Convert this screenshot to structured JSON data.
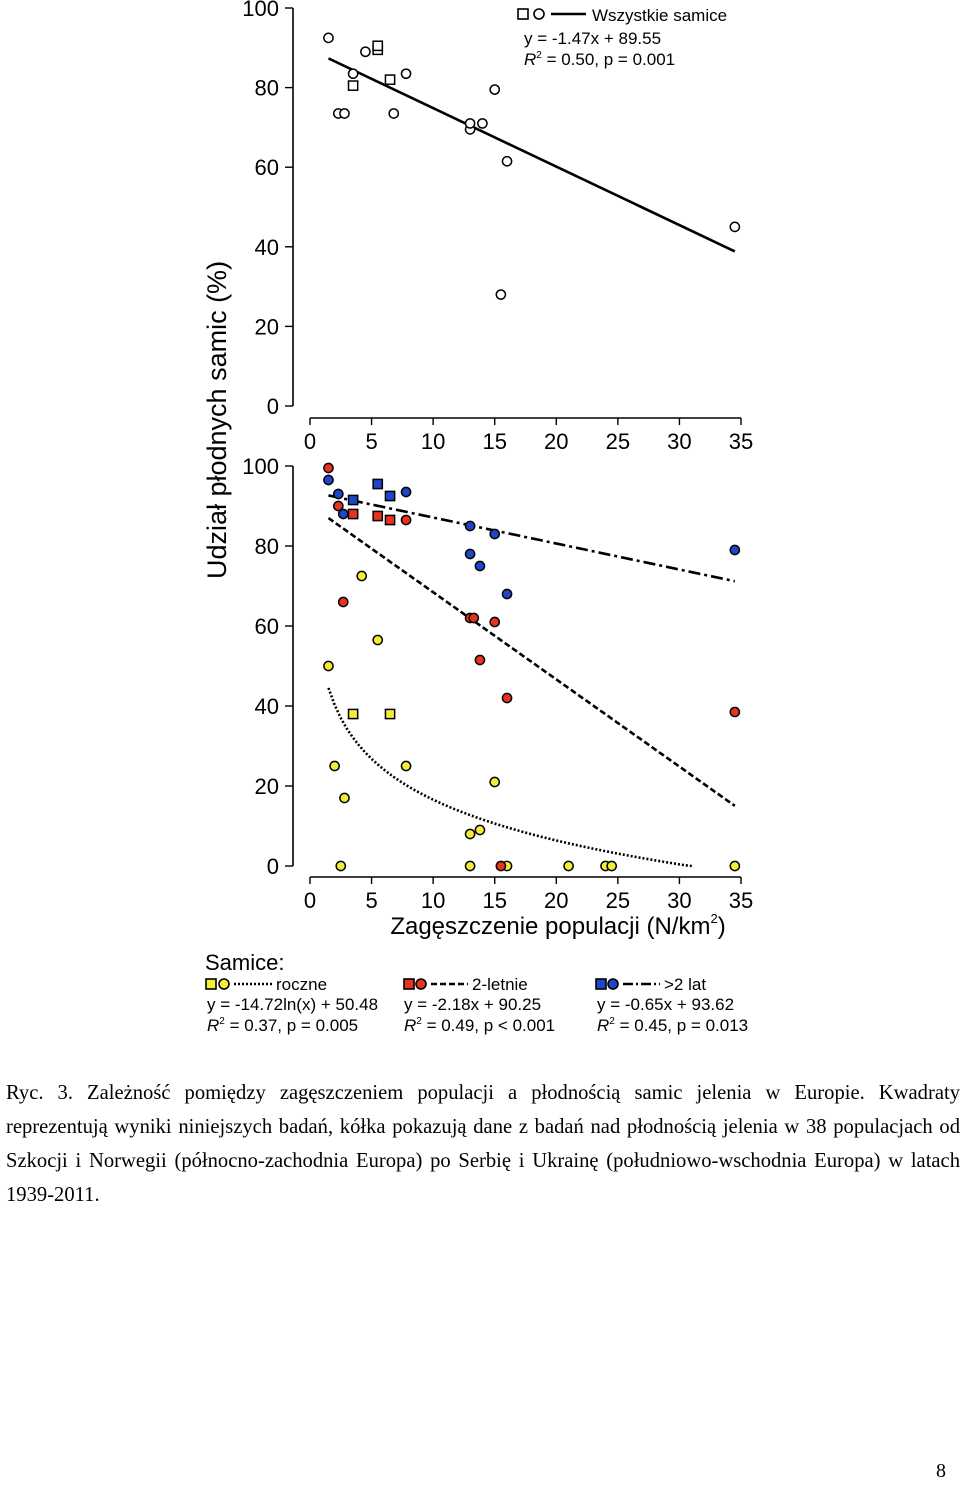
{
  "chart_data": [
    {
      "type": "scatter",
      "panel": "top",
      "xlim": [
        0,
        35
      ],
      "ylim": [
        0,
        100
      ],
      "xticks": [
        0,
        5,
        10,
        15,
        20,
        25,
        30,
        35
      ],
      "yticks": [
        0,
        20,
        40,
        60,
        80,
        100
      ],
      "legend": {
        "placement": "top-right",
        "label": "Wszystkie samice",
        "equation": "y = -1.47x + 89.55",
        "r2_symbol": "R",
        "r2_sup": "2",
        "r2_text": " = 0.50, p = 0.001"
      },
      "series": [
        {
          "name": "Wszystkie samice",
          "squares": [
            [
              3.5,
              80.5
            ],
            [
              5.5,
              89.5
            ],
            [
              5.5,
              90.5
            ],
            [
              6.5,
              82
            ]
          ],
          "circles": [
            [
              1.5,
              92.5
            ],
            [
              2.3,
              73.5
            ],
            [
              2.8,
              73.5
            ],
            [
              3.5,
              83.5
            ],
            [
              4.5,
              89
            ],
            [
              7.8,
              83.5
            ],
            [
              6.8,
              73.5
            ],
            [
              13,
              69.5
            ],
            [
              13,
              71
            ],
            [
              14,
              71
            ],
            [
              15,
              79.5
            ],
            [
              16,
              61.5
            ],
            [
              15.5,
              28
            ],
            [
              34.5,
              45
            ]
          ]
        }
      ],
      "fit": {
        "kind": "linear",
        "slope": -1.47,
        "intercept": 89.55,
        "x_range": [
          1.5,
          34.5
        ]
      }
    },
    {
      "type": "scatter",
      "panel": "bottom",
      "xlim": [
        0,
        35
      ],
      "ylim": [
        0,
        100
      ],
      "xticks": [
        0,
        5,
        10,
        15,
        20,
        25,
        30,
        35
      ],
      "yticks": [
        0,
        20,
        40,
        60,
        80,
        100
      ],
      "xlabel": "Zagęszczenie populacji (N/km",
      "xlabel_sup": "2",
      "xlabel_end": ")",
      "series": [
        {
          "name": "roczne",
          "color": "#f4ec3b",
          "squares": [
            [
              3.5,
              38
            ],
            [
              6.5,
              38
            ]
          ],
          "circles": [
            [
              1.5,
              50
            ],
            [
              2,
              25
            ],
            [
              2.5,
              0
            ],
            [
              2.8,
              17
            ],
            [
              4.2,
              72.5
            ],
            [
              5.5,
              56.5
            ],
            [
              7.8,
              25
            ],
            [
              13,
              8
            ],
            [
              13,
              0
            ],
            [
              13.8,
              9
            ],
            [
              15,
              21
            ],
            [
              16,
              0
            ],
            [
              21,
              0
            ],
            [
              24,
              0
            ],
            [
              24.5,
              0
            ],
            [
              34.5,
              0
            ]
          ],
          "fit": {
            "kind": "log",
            "a": -14.72,
            "b": 50.48,
            "x_range": [
              1.5,
              31
            ]
          }
        },
        {
          "name": "2-letnie",
          "color": "#e8331f",
          "squares": [
            [
              3.5,
              88
            ],
            [
              5.5,
              87.5
            ],
            [
              6.5,
              86.5
            ]
          ],
          "circles": [
            [
              1.5,
              99.5
            ],
            [
              2.3,
              90
            ],
            [
              2.7,
              66
            ],
            [
              7.8,
              86.5
            ],
            [
              13,
              62
            ],
            [
              13.3,
              62
            ],
            [
              13.8,
              51.5
            ],
            [
              15,
              61
            ],
            [
              16,
              42
            ],
            [
              15.5,
              0
            ],
            [
              34.5,
              38.5
            ]
          ],
          "fit": {
            "kind": "linear",
            "slope": -2.18,
            "intercept": 90.25,
            "x_range": [
              1.5,
              34.5
            ]
          }
        },
        {
          "name": ">2 lat",
          "color": "#1e46c8",
          "squares": [
            [
              3.5,
              91.5
            ],
            [
              5.5,
              95.5
            ],
            [
              6.5,
              92.5
            ]
          ],
          "circles": [
            [
              1.5,
              96.5
            ],
            [
              2.3,
              93
            ],
            [
              2.7,
              88
            ],
            [
              7.8,
              93.5
            ],
            [
              13,
              85
            ],
            [
              13,
              78
            ],
            [
              13.8,
              75
            ],
            [
              15,
              83
            ],
            [
              16,
              68
            ],
            [
              34.5,
              79
            ]
          ],
          "fit": {
            "kind": "linear",
            "slope": -0.65,
            "intercept": 93.62,
            "x_range": [
              1.5,
              34.5
            ]
          }
        }
      ]
    }
  ],
  "figure": {
    "ylabel": "Udział płodnych samic (%)"
  },
  "legend_bottom": {
    "title": "Samice:",
    "groups": [
      {
        "label": "roczne",
        "equation": "y = -14.72ln(x) + 50.48",
        "r2_symbol": "R",
        "r2_sup": "2",
        "r2_text": " = 0.37, p = 0.005"
      },
      {
        "label": "2-letnie",
        "equation": "y = -2.18x + 90.25",
        "r2_symbol": "R",
        "r2_sup": "2",
        "r2_text": " = 0.49, p < 0.001"
      },
      {
        "label": ">2 lat",
        "equation": "y = -0.65x + 93.62",
        "r2_symbol": "R",
        "r2_sup": "2",
        "r2_text": " = 0.45, p = 0.013"
      }
    ]
  },
  "caption": {
    "text": "Ryc. 3. Zależność pomiędzy zagęszczeniem populacji a płodnością samic jelenia w Europie. Kwadraty reprezentują wyniki niniejszych badań, kółka pokazują dane z badań nad płodnością jelenia w 38 populacjach od Szkocji i Norwegii (północno-zachodnia Europa) po Serbię i Ukrainę (południowo-wschodnia Europa) w latach 1939-2011."
  },
  "page": {
    "number": "8"
  }
}
